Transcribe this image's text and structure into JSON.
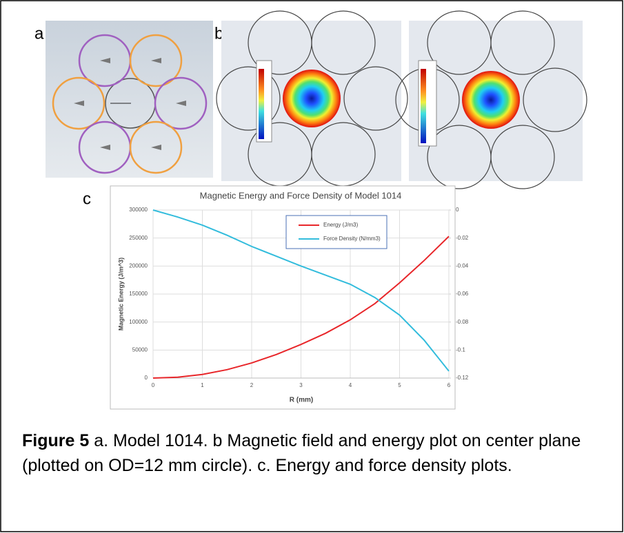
{
  "panel_labels": [
    "a",
    "b",
    "c"
  ],
  "chart_data": {
    "type": "line",
    "title": "Magnetic Energy and Force Density of Model 1014",
    "x_label": "R (mm)",
    "y_label": "Magnetic Energy (J/m^3)",
    "x": [
      0,
      0.5,
      1,
      1.5,
      2,
      2.5,
      3,
      3.5,
      4,
      4.5,
      5,
      5.5,
      6
    ],
    "series": [
      {
        "name": "Energy (J/m3)",
        "color": "#e8262a",
        "values": [
          0,
          1500,
          6500,
          15000,
          27000,
          42000,
          60000,
          80000,
          104000,
          133000,
          170000,
          210000,
          253000
        ]
      },
      {
        "name": "Force Density (N/mm3)",
        "color": "#32bcdc",
        "axis": "y2",
        "values": [
          0,
          -0.005,
          -0.0108,
          -0.018,
          -0.026,
          -0.033,
          -0.04,
          -0.0465,
          -0.053,
          -0.0625,
          -0.075,
          -0.093,
          -0.115
        ]
      }
    ],
    "xlim": [
      0,
      6
    ],
    "xticks": [
      0,
      1,
      2,
      3,
      4,
      5,
      6
    ],
    "ylim": [
      0,
      300000
    ],
    "yticks": [
      0,
      50000,
      100000,
      150000,
      200000,
      250000,
      300000
    ],
    "y2lim": [
      -0.12,
      0
    ],
    "y2ticks": [
      0,
      -0.02,
      -0.04,
      -0.06,
      -0.08,
      -0.1,
      -0.12
    ],
    "grid": true,
    "legend": "upper center"
  },
  "caption": {
    "label": "Figure 5",
    "text": "a. Model 1014. b Magnetic field and energy plot on center plane (plotted on OD=12 mm circle). c. Energy and force density plots."
  }
}
